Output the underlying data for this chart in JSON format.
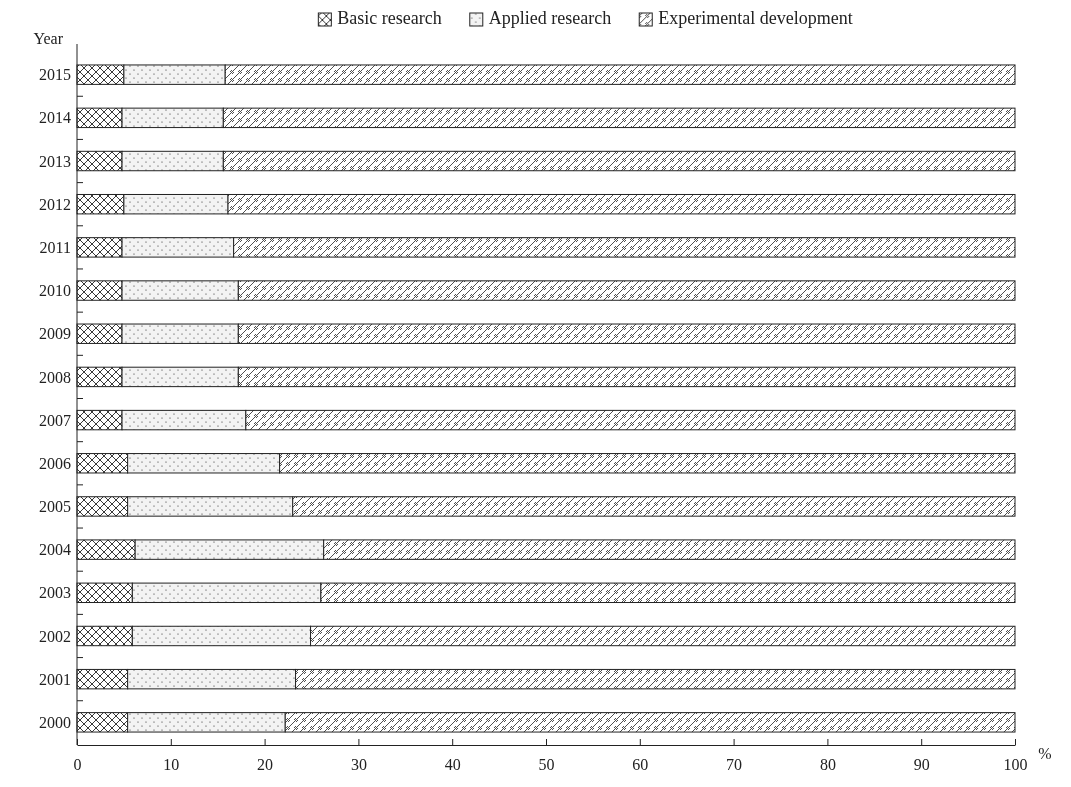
{
  "chart_data": {
    "type": "bar",
    "orientation": "horizontal",
    "stacked": true,
    "ylabel": "Year",
    "xlabel": "%",
    "categories": [
      "2015",
      "2014",
      "2013",
      "2012",
      "2011",
      "2010",
      "2009",
      "2008",
      "2007",
      "2006",
      "2005",
      "2004",
      "2003",
      "2002",
      "2001",
      "2000"
    ],
    "series": [
      {
        "name": "Basic research",
        "color": "#222222",
        "values": [
          5.0,
          4.8,
          4.8,
          5.0,
          4.8,
          4.8,
          4.8,
          4.8,
          4.8,
          5.4,
          5.4,
          6.2,
          5.9,
          5.9,
          5.4,
          5.4
        ]
      },
      {
        "name": "Applied research",
        "color": "#222222",
        "values": [
          10.8,
          10.8,
          10.8,
          11.1,
          11.9,
          12.4,
          12.4,
          12.4,
          13.2,
          16.2,
          17.6,
          20.1,
          20.1,
          19.0,
          17.9,
          16.8
        ]
      },
      {
        "name": "Experimental development",
        "color": "#222222",
        "values": [
          84.2,
          84.4,
          84.4,
          83.9,
          83.3,
          82.8,
          82.8,
          82.8,
          82.0,
          78.4,
          77.0,
          73.7,
          74.0,
          75.1,
          76.7,
          77.8
        ]
      }
    ],
    "xlim": [
      0,
      100
    ],
    "xticks": [
      0,
      10,
      20,
      30,
      40,
      50,
      60,
      70,
      80,
      90,
      100
    ],
    "legend": "top",
    "grid": false
  }
}
